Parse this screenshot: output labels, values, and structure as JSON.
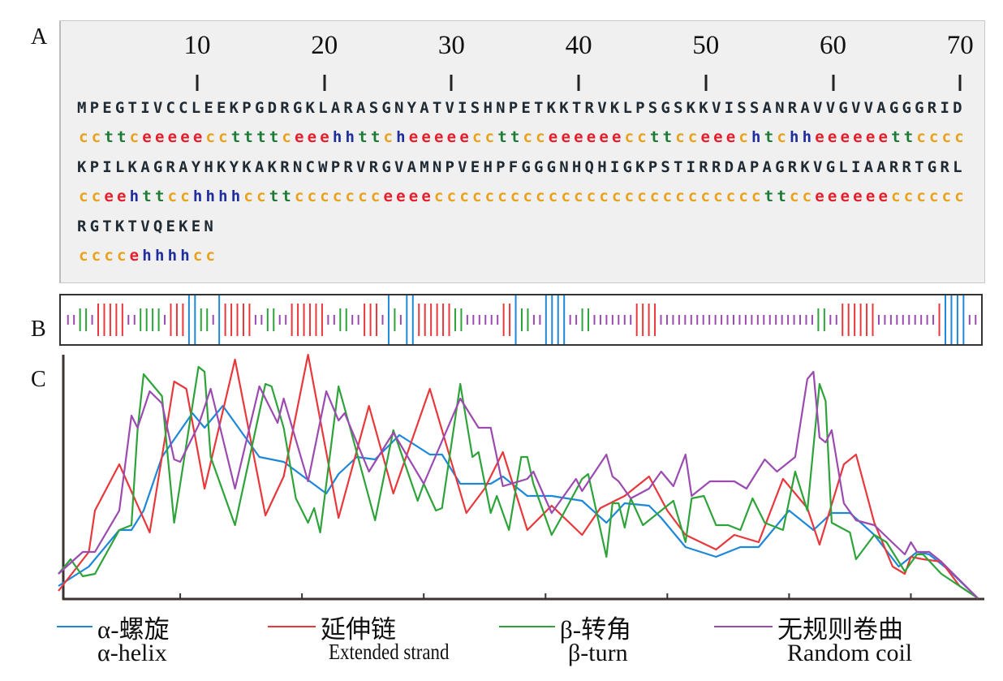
{
  "panel_labels": {
    "a": "A",
    "b": "B",
    "c": "C"
  },
  "ruler": [
    "10",
    "20",
    "30",
    "40",
    "50",
    "60",
    "70"
  ],
  "colors": {
    "c": "#e8a21c",
    "e": "#e41e2b",
    "t": "#1d7b35",
    "h": "#1f2e9c",
    "helix": "#1e88d8",
    "strand": "#e8383c",
    "turn": "#2ea33a",
    "coil": "#9b4bb0"
  },
  "sequence_rows": [
    {
      "seq": "MPEGTIVCCLEEKPGDRGKLARASGNYATVISHNPETKKTRVKLPSGSKKVISSANRAVVGVVAGGGRID",
      "ss": "ccttceeeeeccttttceeehhttcheeeeeccttcceeeeeeccttcceeechtchheeeeeettcccc"
    },
    {
      "seq": "KPILKAGRAYHKYKAKRNCWPRVRGVAMNPVEHPFGGGNHQHIGKPSTIRRDAPAGRKVGLIAARRTGRL",
      "ss": "cceehttcchhhhccttccccccceeeeccccccccccccccccccccccccccttcceeeeeecccccc"
    },
    {
      "seq": "RGTKTVQEKEN",
      "ss": "ccccehhhhcc"
    }
  ],
  "legend": [
    {
      "zh": "α-螺旋",
      "en": "α-helix",
      "key": "helix"
    },
    {
      "zh": "延伸链",
      "en": "Extended strand",
      "key": "strand"
    },
    {
      "zh": "β-转角",
      "en": "β-turn",
      "key": "turn"
    },
    {
      "zh": "无规则卷曲",
      "en": "Random coil",
      "key": "coil"
    }
  ],
  "chart_data": {
    "type": "line",
    "xlabel": "",
    "ylabel": "",
    "xlim": [
      0,
      151
    ],
    "ylim": [
      0,
      1
    ],
    "x_ticks": [
      20,
      40,
      60,
      80,
      100,
      120,
      140
    ],
    "series": [
      {
        "name": "α-helix",
        "key": "helix",
        "points": [
          [
            0,
            0.05
          ],
          [
            5,
            0.13
          ],
          [
            10,
            0.28
          ],
          [
            12,
            0.28
          ],
          [
            14,
            0.36
          ],
          [
            17,
            0.58
          ],
          [
            22,
            0.76
          ],
          [
            24,
            0.7
          ],
          [
            27,
            0.79
          ],
          [
            33,
            0.58
          ],
          [
            37,
            0.56
          ],
          [
            44,
            0.43
          ],
          [
            46,
            0.51
          ],
          [
            49,
            0.58
          ],
          [
            52,
            0.57
          ],
          [
            56,
            0.67
          ],
          [
            61,
            0.59
          ],
          [
            63,
            0.59
          ],
          [
            66,
            0.47
          ],
          [
            71,
            0.47
          ],
          [
            73,
            0.5
          ],
          [
            77,
            0.42
          ],
          [
            81,
            0.42
          ],
          [
            86,
            0.4
          ],
          [
            90,
            0.31
          ],
          [
            93,
            0.39
          ],
          [
            97,
            0.38
          ],
          [
            99,
            0.33
          ],
          [
            103,
            0.21
          ],
          [
            108,
            0.17
          ],
          [
            112,
            0.21
          ],
          [
            115,
            0.21
          ],
          [
            120,
            0.36
          ],
          [
            124,
            0.28
          ],
          [
            127,
            0.35
          ],
          [
            130,
            0.35
          ],
          [
            134,
            0.26
          ],
          [
            138,
            0.13
          ],
          [
            141,
            0.19
          ],
          [
            143,
            0.18
          ],
          [
            146,
            0.12
          ],
          [
            151,
            0
          ]
        ]
      },
      {
        "name": "Extended strand",
        "key": "strand",
        "points": [
          [
            0,
            0.03
          ],
          [
            5,
            0.19
          ],
          [
            6,
            0.36
          ],
          [
            10,
            0.55
          ],
          [
            15,
            0.27
          ],
          [
            19,
            0.89
          ],
          [
            21,
            0.86
          ],
          [
            24,
            0.45
          ],
          [
            29,
            0.98
          ],
          [
            34,
            0.34
          ],
          [
            37,
            0.5
          ],
          [
            41,
            1.0
          ],
          [
            46,
            0.33
          ],
          [
            51,
            0.79
          ],
          [
            55,
            0.43
          ],
          [
            61,
            0.86
          ],
          [
            67,
            0.35
          ],
          [
            70,
            0.45
          ],
          [
            73,
            0.6
          ],
          [
            77,
            0.28
          ],
          [
            81,
            0.38
          ],
          [
            86,
            0.26
          ],
          [
            89,
            0.37
          ],
          [
            93,
            0.42
          ],
          [
            97,
            0.5
          ],
          [
            100,
            0.36
          ],
          [
            103,
            0.26
          ],
          [
            108,
            0.2
          ],
          [
            111,
            0.26
          ],
          [
            115,
            0.23
          ],
          [
            119,
            0.49
          ],
          [
            123,
            0.37
          ],
          [
            125,
            0.22
          ],
          [
            129,
            0.55
          ],
          [
            131,
            0.59
          ],
          [
            134,
            0.31
          ],
          [
            137,
            0.13
          ],
          [
            139,
            0.1
          ],
          [
            140,
            0.17
          ],
          [
            142,
            0.16
          ],
          [
            145,
            0.15
          ],
          [
            148,
            0.05
          ],
          [
            151,
            0
          ]
        ]
      },
      {
        "name": "β-turn",
        "key": "turn",
        "points": [
          [
            0,
            0.1
          ],
          [
            2,
            0.16
          ],
          [
            4,
            0.09
          ],
          [
            6,
            0.1
          ],
          [
            10,
            0.28
          ],
          [
            12,
            0.3
          ],
          [
            13,
            0.69
          ],
          [
            14,
            0.92
          ],
          [
            17,
            0.83
          ],
          [
            19,
            0.31
          ],
          [
            23,
            0.95
          ],
          [
            24,
            0.93
          ],
          [
            25,
            0.58
          ],
          [
            29,
            0.3
          ],
          [
            34,
            0.88
          ],
          [
            35,
            0.87
          ],
          [
            37,
            0.7
          ],
          [
            39,
            0.41
          ],
          [
            41,
            0.31
          ],
          [
            42,
            0.37
          ],
          [
            43,
            0.27
          ],
          [
            46,
            0.87
          ],
          [
            48,
            0.69
          ],
          [
            52,
            0.32
          ],
          [
            55,
            0.69
          ],
          [
            59,
            0.4
          ],
          [
            60,
            0.47
          ],
          [
            62,
            0.36
          ],
          [
            63,
            0.37
          ],
          [
            66,
            0.88
          ],
          [
            68,
            0.58
          ],
          [
            69,
            0.6
          ],
          [
            71,
            0.35
          ],
          [
            72,
            0.42
          ],
          [
            74,
            0.28
          ],
          [
            76,
            0.58
          ],
          [
            77,
            0.58
          ],
          [
            78,
            0.47
          ],
          [
            81,
            0.26
          ],
          [
            83,
            0.35
          ],
          [
            86,
            0.49
          ],
          [
            87,
            0.51
          ],
          [
            90,
            0.17
          ],
          [
            91,
            0.39
          ],
          [
            92,
            0.39
          ],
          [
            93,
            0.29
          ],
          [
            94,
            0.41
          ],
          [
            96,
            0.3
          ],
          [
            101,
            0.4
          ],
          [
            103,
            0.23
          ],
          [
            104,
            0.41
          ],
          [
            106,
            0.42
          ],
          [
            108,
            0.3
          ],
          [
            110,
            0.3
          ],
          [
            112,
            0.28
          ],
          [
            114,
            0.41
          ],
          [
            116,
            0.31
          ],
          [
            119,
            0.28
          ],
          [
            121,
            0.52
          ],
          [
            123,
            0.36
          ],
          [
            125,
            0.88
          ],
          [
            126,
            0.81
          ],
          [
            127,
            0.31
          ],
          [
            130,
            0.27
          ],
          [
            131,
            0.16
          ],
          [
            134,
            0.26
          ],
          [
            136,
            0.23
          ],
          [
            139,
            0.11
          ],
          [
            141,
            0.18
          ],
          [
            142,
            0.18
          ],
          [
            145,
            0.1
          ],
          [
            151,
            0
          ]
        ]
      },
      {
        "name": "Random coil",
        "key": "coil",
        "points": [
          [
            0,
            0.1
          ],
          [
            4,
            0.19
          ],
          [
            6,
            0.19
          ],
          [
            10,
            0.36
          ],
          [
            12,
            0.75
          ],
          [
            13,
            0.7
          ],
          [
            15,
            0.85
          ],
          [
            17,
            0.8
          ],
          [
            19,
            0.57
          ],
          [
            20,
            0.56
          ],
          [
            23,
            0.71
          ],
          [
            25,
            0.86
          ],
          [
            29,
            0.45
          ],
          [
            33,
            0.87
          ],
          [
            36,
            0.72
          ],
          [
            37,
            0.82
          ],
          [
            41,
            0.48
          ],
          [
            44,
            0.85
          ],
          [
            46,
            0.73
          ],
          [
            47,
            0.76
          ],
          [
            51,
            0.52
          ],
          [
            55,
            0.68
          ],
          [
            60,
            0.47
          ],
          [
            66,
            0.82
          ],
          [
            69,
            0.7
          ],
          [
            71,
            0.7
          ],
          [
            73,
            0.46
          ],
          [
            77,
            0.49
          ],
          [
            78,
            0.52
          ],
          [
            81,
            0.35
          ],
          [
            85,
            0.49
          ],
          [
            86,
            0.44
          ],
          [
            90,
            0.59
          ],
          [
            91,
            0.5
          ],
          [
            92,
            0.48
          ],
          [
            94,
            0.41
          ],
          [
            97,
            0.45
          ],
          [
            99,
            0.52
          ],
          [
            101,
            0.46
          ],
          [
            103,
            0.59
          ],
          [
            104,
            0.42
          ],
          [
            107,
            0.48
          ],
          [
            111,
            0.48
          ],
          [
            113,
            0.45
          ],
          [
            116,
            0.57
          ],
          [
            118,
            0.52
          ],
          [
            121,
            0.58
          ],
          [
            123,
            0.9
          ],
          [
            124,
            0.93
          ],
          [
            125,
            0.66
          ],
          [
            126,
            0.64
          ],
          [
            127,
            0.69
          ],
          [
            129,
            0.39
          ],
          [
            131,
            0.32
          ],
          [
            134,
            0.3
          ],
          [
            139,
            0.18
          ],
          [
            140,
            0.23
          ],
          [
            141,
            0.19
          ],
          [
            143,
            0.19
          ],
          [
            145,
            0.15
          ],
          [
            151,
            0
          ]
        ]
      }
    ]
  }
}
